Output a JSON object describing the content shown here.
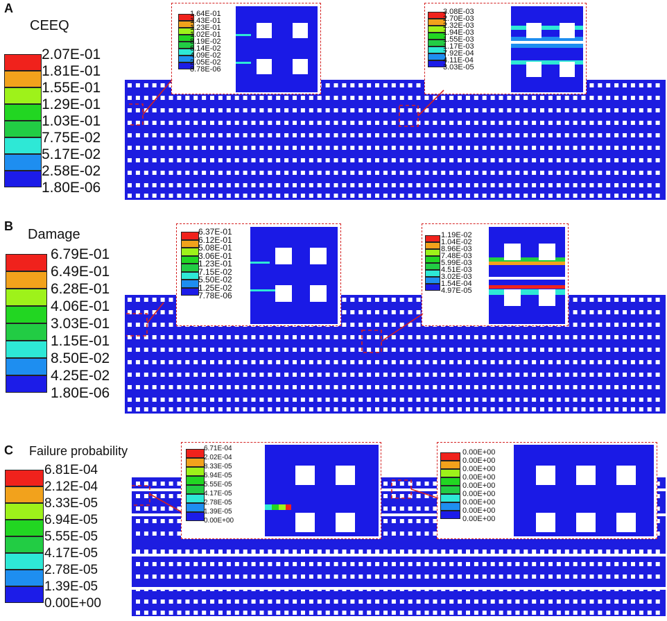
{
  "colors": {
    "scale": [
      "#1c1ce8",
      "#1e8ef0",
      "#2ee8d6",
      "#22cc44",
      "#22d622",
      "#9ef21a",
      "#f2a21c",
      "#f0221c"
    ],
    "model": "#1d1de0",
    "hole": "#ffffff",
    "marker": "#d42020"
  },
  "panels": [
    {
      "letter": "A",
      "title": "CEEQ",
      "legend": [
        "2.07E-01",
        "1.81E-01",
        "1.55E-01",
        "1.29E-01",
        "1.03E-01",
        "7.75E-02",
        "5.17E-02",
        "2.58E-02",
        "1.80E-06"
      ],
      "insets": [
        {
          "legend": [
            "1.64E-01",
            "1.43E-01",
            "1.23E-01",
            "1.02E-01",
            "8.19E-02",
            "6.14E-02",
            "4.09E-02",
            "2.05E-02",
            "8.78E-06"
          ]
        },
        {
          "legend": [
            "3.08E-03",
            "2.70E-03",
            "2.32E-03",
            "1.94E-03",
            "1.55E-03",
            "1.17E-03",
            "7.92E-04",
            "4.11E-04",
            "3.03E-05"
          ]
        }
      ]
    },
    {
      "letter": "B",
      "title": "Damage",
      "legend": [
        "6.79E-01",
        "6.49E-01",
        "6.28E-01",
        "4.06E-01",
        "3.03E-01",
        "1.15E-01",
        "8.50E-02",
        "4.25E-02",
        "1.80E-06"
      ],
      "insets": [
        {
          "legend": [
            "6.37E-01",
            "6.12E-01",
            "5.08E-01",
            "3.06E-01",
            "1.23E-01",
            "7.15E-02",
            "5.50E-02",
            "1.25E-02",
            "7.78E-06"
          ]
        },
        {
          "legend": [
            "1.19E-02",
            "1.04E-02",
            "8.96E-03",
            "7.48E-03",
            "5.99E-03",
            "4.51E-03",
            "3.02E-03",
            "1.54E-04",
            "4.97E-05"
          ]
        }
      ]
    },
    {
      "letter": "C",
      "title": "Failure probability",
      "legend": [
        "6.81E-04",
        "2.12E-04",
        "8.33E-05",
        "6.94E-05",
        "5.55E-05",
        "4.17E-05",
        "2.78E-05",
        "1.39E-05",
        "0.00E+00"
      ],
      "insets": [
        {
          "legend": [
            "6.71E-04",
            "2.02E-04",
            "8.33E-05",
            "6.94E-05",
            "5.55E-05",
            "4.17E-05",
            "2.78E-05",
            "1.39E-05",
            "0.00E+00"
          ]
        },
        {
          "legend": [
            "0.00E+00",
            "0.00E+00",
            "0.00E+00",
            "0.00E+00",
            "0.00E+00",
            "0.00E+00",
            "0.00E+00",
            "0.00E+00",
            "0.00E+00"
          ]
        }
      ]
    }
  ]
}
